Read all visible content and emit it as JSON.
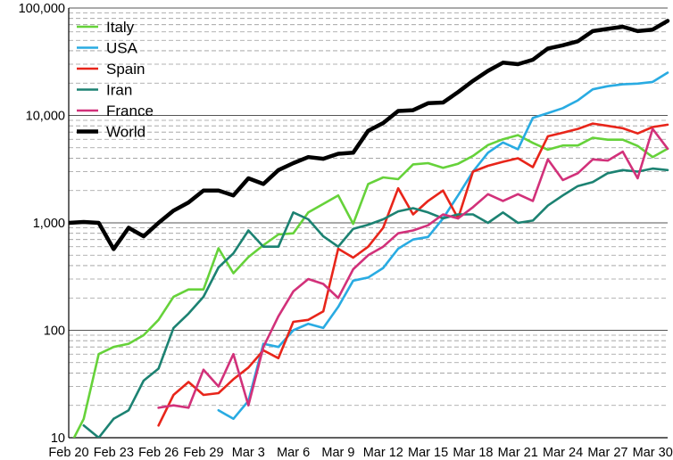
{
  "chart_data": {
    "type": "line",
    "title": "",
    "xlabel": "",
    "ylabel": "",
    "y_scale": "log",
    "ylim": [
      10,
      100000
    ],
    "grid": "horizontal",
    "legend_position": "top-left",
    "y_ticks": [
      {
        "value": 10,
        "label": "10"
      },
      {
        "value": 100,
        "label": "100"
      },
      {
        "value": 1000,
        "label": "1,000"
      },
      {
        "value": 10000,
        "label": "10,000"
      },
      {
        "value": 100000,
        "label": "100,000"
      }
    ],
    "x": [
      "Feb 20",
      "Feb 21",
      "Feb 22",
      "Feb 23",
      "Feb 24",
      "Feb 25",
      "Feb 26",
      "Feb 27",
      "Feb 28",
      "Feb 29",
      "Mar 1",
      "Mar 2",
      "Mar 3",
      "Mar 4",
      "Mar 5",
      "Mar 6",
      "Mar 7",
      "Mar 8",
      "Mar 9",
      "Mar 10",
      "Mar 11",
      "Mar 12",
      "Mar 13",
      "Mar 14",
      "Mar 15",
      "Mar 16",
      "Mar 17",
      "Mar 18",
      "Mar 19",
      "Mar 20",
      "Mar 21",
      "Mar 22",
      "Mar 23",
      "Mar 24",
      "Mar 25",
      "Mar 26",
      "Mar 27",
      "Mar 28",
      "Mar 29",
      "Mar 30",
      "Mar 31"
    ],
    "x_tick_labels": [
      "Feb 20",
      "Feb 23",
      "Feb 26",
      "Feb 29",
      "Mar 3",
      "Mar 6",
      "Mar 9",
      "Mar 12",
      "Mar 15",
      "Mar 18",
      "Mar 21",
      "Mar 24",
      "Mar 27",
      "Mar 30"
    ],
    "series": [
      {
        "name": "Italy",
        "color": "#66d23a",
        "values": [
          8,
          15,
          60,
          70,
          75,
          90,
          125,
          205,
          240,
          240,
          580,
          340,
          480,
          620,
          780,
          800,
          1250,
          1500,
          1800,
          980,
          2300,
          2650,
          2550,
          3500,
          3600,
          3250,
          3550,
          4200,
          5300,
          6000,
          6550,
          5550,
          4800,
          5250,
          5250,
          6200,
          5950,
          5950,
          5200,
          4100,
          4900
        ]
      },
      {
        "name": "USA",
        "color": "#29abe2",
        "values": [
          null,
          null,
          null,
          null,
          null,
          null,
          null,
          null,
          null,
          null,
          18,
          15,
          22,
          75,
          70,
          100,
          115,
          105,
          165,
          290,
          310,
          380,
          575,
          700,
          740,
          1100,
          1800,
          3000,
          4500,
          5600,
          4850,
          9500,
          10500,
          11700,
          13800,
          17500,
          18700,
          19500,
          19800,
          20500,
          25000
        ]
      },
      {
        "name": "Spain",
        "color": "#e8251a",
        "values": [
          null,
          null,
          null,
          null,
          null,
          null,
          13,
          25,
          33,
          25,
          26,
          35,
          45,
          65,
          55,
          120,
          125,
          150,
          575,
          475,
          600,
          900,
          2100,
          1200,
          1600,
          2000,
          1100,
          3000,
          3400,
          3700,
          4000,
          3300,
          6400,
          6900,
          7500,
          8400,
          8000,
          7600,
          6800,
          7800,
          8200
        ]
      },
      {
        "name": "Iran",
        "color": "#1c8272",
        "values": [
          null,
          13,
          10,
          15,
          18,
          34,
          44,
          105,
          143,
          205,
          385,
          520,
          850,
          600,
          600,
          1250,
          1080,
          750,
          600,
          880,
          960,
          1080,
          1280,
          1370,
          1250,
          1100,
          1200,
          1200,
          1000,
          1250,
          1000,
          1050,
          1450,
          1800,
          2200,
          2400,
          2900,
          3100,
          3000,
          3200,
          3100
        ]
      },
      {
        "name": "France",
        "color": "#d2317a",
        "values": [
          null,
          null,
          null,
          null,
          null,
          null,
          19,
          20,
          19,
          43,
          30,
          60,
          20,
          70,
          135,
          230,
          300,
          270,
          200,
          370,
          500,
          600,
          800,
          850,
          950,
          1200,
          1100,
          1400,
          1850,
          1600,
          1850,
          1600,
          3900,
          2500,
          2900,
          3900,
          3800,
          4600,
          2600,
          7500,
          4900
        ]
      },
      {
        "name": "World",
        "color": "#000000",
        "values": [
          1000,
          1020,
          1000,
          570,
          900,
          750,
          1000,
          1300,
          1550,
          2000,
          2000,
          1800,
          2600,
          2300,
          3100,
          3600,
          4100,
          3950,
          4400,
          4500,
          7200,
          8500,
          11000,
          11200,
          13000,
          13200,
          16500,
          21000,
          26000,
          31000,
          30000,
          33000,
          42000,
          45000,
          49000,
          61000,
          64000,
          67000,
          61000,
          63000,
          76000
        ]
      }
    ]
  }
}
